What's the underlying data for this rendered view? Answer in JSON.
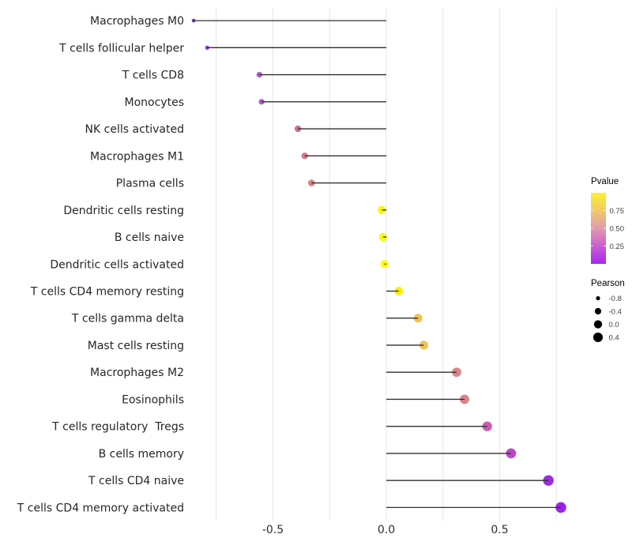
{
  "chart_data": {
    "type": "scatter",
    "subtype": "horizontal-lollipop",
    "title": "",
    "xlabel": "",
    "ylabel": "",
    "x_axis": {
      "tick_values": [
        -0.5,
        0.0,
        0.5
      ],
      "tick_labels": [
        "-0.5",
        "0.0",
        "0.5"
      ],
      "gridline_values": [
        -0.75,
        -0.5,
        -0.25,
        0.0,
        0.25,
        0.5,
        0.75
      ],
      "range": [
        -0.88,
        0.87
      ],
      "grid": "vertical-only"
    },
    "points": [
      {
        "label": "Macrophages M0",
        "pearson": -0.85,
        "pvalue_est": 0.02,
        "color": "#712CB0"
      },
      {
        "label": "T cells follicular helper",
        "pearson": -0.79,
        "pvalue_est": 0.05,
        "color": "#8D3CC9"
      },
      {
        "label": "T cells CD8",
        "pearson": -0.56,
        "pvalue_est": 0.17,
        "color": "#B25AC8"
      },
      {
        "label": "Monocytes",
        "pearson": -0.55,
        "pvalue_est": 0.18,
        "color": "#B45CC7"
      },
      {
        "label": "NK cells activated",
        "pearson": -0.39,
        "pvalue_est": 0.35,
        "color": "#C9708F"
      },
      {
        "label": "Macrophages M1",
        "pearson": -0.36,
        "pvalue_est": 0.42,
        "color": "#D47B8C"
      },
      {
        "label": "Plasma cells",
        "pearson": -0.33,
        "pvalue_est": 0.47,
        "color": "#DA8287"
      },
      {
        "label": "Dendritic cells resting",
        "pearson": -0.02,
        "pvalue_est": 0.97,
        "color": "#FDF900"
      },
      {
        "label": "B cells naive",
        "pearson": -0.015,
        "pvalue_est": 0.97,
        "color": "#FDF900"
      },
      {
        "label": "Dendritic cells activated",
        "pearson": -0.008,
        "pvalue_est": 0.99,
        "color": "#FDFB00"
      },
      {
        "label": "T cells CD4 memory resting",
        "pearson": 0.055,
        "pvalue_est": 0.93,
        "color": "#FBF000"
      },
      {
        "label": "T cells gamma delta",
        "pearson": 0.14,
        "pvalue_est": 0.78,
        "color": "#F0C353"
      },
      {
        "label": "Mast cells resting",
        "pearson": 0.165,
        "pvalue_est": 0.76,
        "color": "#EFC254"
      },
      {
        "label": "Macrophages M2",
        "pearson": 0.31,
        "pvalue_est": 0.5,
        "color": "#DD8487"
      },
      {
        "label": "Eosinophils",
        "pearson": 0.345,
        "pvalue_est": 0.47,
        "color": "#DC8387"
      },
      {
        "label": "T cells regulatory  Tregs",
        "pearson": 0.445,
        "pvalue_est": 0.3,
        "color": "#C95FB2"
      },
      {
        "label": "B cells memory",
        "pearson": 0.55,
        "pvalue_est": 0.21,
        "color": "#BB4BC6"
      },
      {
        "label": "T cells CD4 naive",
        "pearson": 0.715,
        "pvalue_est": 0.07,
        "color": "#9D2BE2"
      },
      {
        "label": "T cells CD4 memory activated",
        "pearson": 0.77,
        "pvalue_est": 0.05,
        "color": "#9A23E5"
      }
    ],
    "color_legend": {
      "title": "Pvalue",
      "tick_values": [
        0.75,
        0.5,
        0.25
      ],
      "tick_labels": [
        "0.75",
        "0.50",
        "0.25"
      ],
      "range": [
        0,
        1
      ],
      "gradient_stops": [
        {
          "offset": 0.0,
          "color": "#A826F1"
        },
        {
          "offset": 0.25,
          "color": "#CA5ED1"
        },
        {
          "offset": 0.5,
          "color": "#E09AAE"
        },
        {
          "offset": 0.75,
          "color": "#F2C969"
        },
        {
          "offset": 1.0,
          "color": "#FAF22D"
        }
      ]
    },
    "size_legend": {
      "title": "Pearson",
      "entries": [
        -0.8,
        -0.4,
        0.0,
        0.4
      ],
      "entry_labels": [
        "-0.8",
        "-0.4",
        "0.0",
        "0.4"
      ],
      "dot_color": "#000000"
    },
    "style": {
      "background": "#FFFFFF",
      "gridline_color": "#E6E6E6",
      "stem_color": "#303030",
      "label_text_color": "#262626",
      "axis_text_color": "#303030",
      "legend_title_color": "#000000",
      "legend_text_color": "#404040"
    }
  }
}
